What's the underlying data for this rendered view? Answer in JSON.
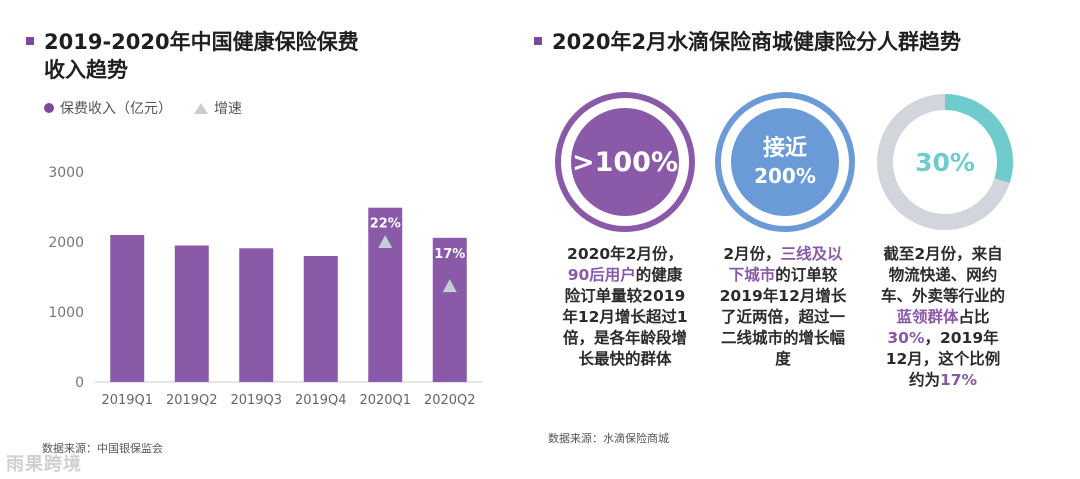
{
  "left": {
    "title_line1": "2019-2020年中国健康保险保费",
    "title_line2": "收入趋势",
    "legend": {
      "bar_label": "保费收入（亿元）",
      "growth_label": "增速"
    },
    "source": "数据来源：中国银保监会"
  },
  "chart_data": {
    "type": "bar",
    "categories": [
      "2019Q1",
      "2019Q2",
      "2019Q3",
      "2019Q4",
      "2020Q1",
      "2020Q2"
    ],
    "values": [
      2100,
      1950,
      1910,
      1800,
      2490,
      2060
    ],
    "ylim": [
      0,
      3000
    ],
    "yticks": [
      "0",
      "1000",
      "2000",
      "3000"
    ],
    "growth_annotations": [
      {
        "category": "2020Q1",
        "label": "22%",
        "value": 2000
      },
      {
        "category": "2020Q2",
        "label": "17%",
        "value": 1370
      }
    ],
    "colors": {
      "bar": "#8a5aa8",
      "growth_marker": "#c7cdd4",
      "axis": "#cccccc"
    }
  },
  "right": {
    "title": "2020年2月水滴保险商城健康险分人群趋势",
    "source": "数据来源：水滴保险商城",
    "cards": [
      {
        "value": ">100%",
        "desc_parts": [
          "2020年2月份，",
          "90后用户",
          "的健康险订单量较2019年12月增长超过1倍，是各年龄段增长最快的群体"
        ]
      },
      {
        "value_line1": "接近",
        "value_line2": "200%",
        "desc_parts": [
          "2月份，",
          "三线及以下城市",
          "的订单较2019年12月增长了近两倍，超过一二线城市的增长幅度"
        ]
      },
      {
        "value": "30%",
        "ring_fraction": 0.3,
        "desc_parts": [
          "截至2月份，来自物流快递、网约车、外卖等行业的",
          "蓝领群体",
          "占比",
          "30%",
          "，2019年12月，这个比例约为",
          "17%"
        ]
      }
    ],
    "colors": {
      "purple": "#8a5aa8",
      "blue": "#6b9bd6",
      "teal": "#6fcbcc",
      "grey": "#d2d6dc"
    }
  },
  "watermark": "雨果跨境"
}
